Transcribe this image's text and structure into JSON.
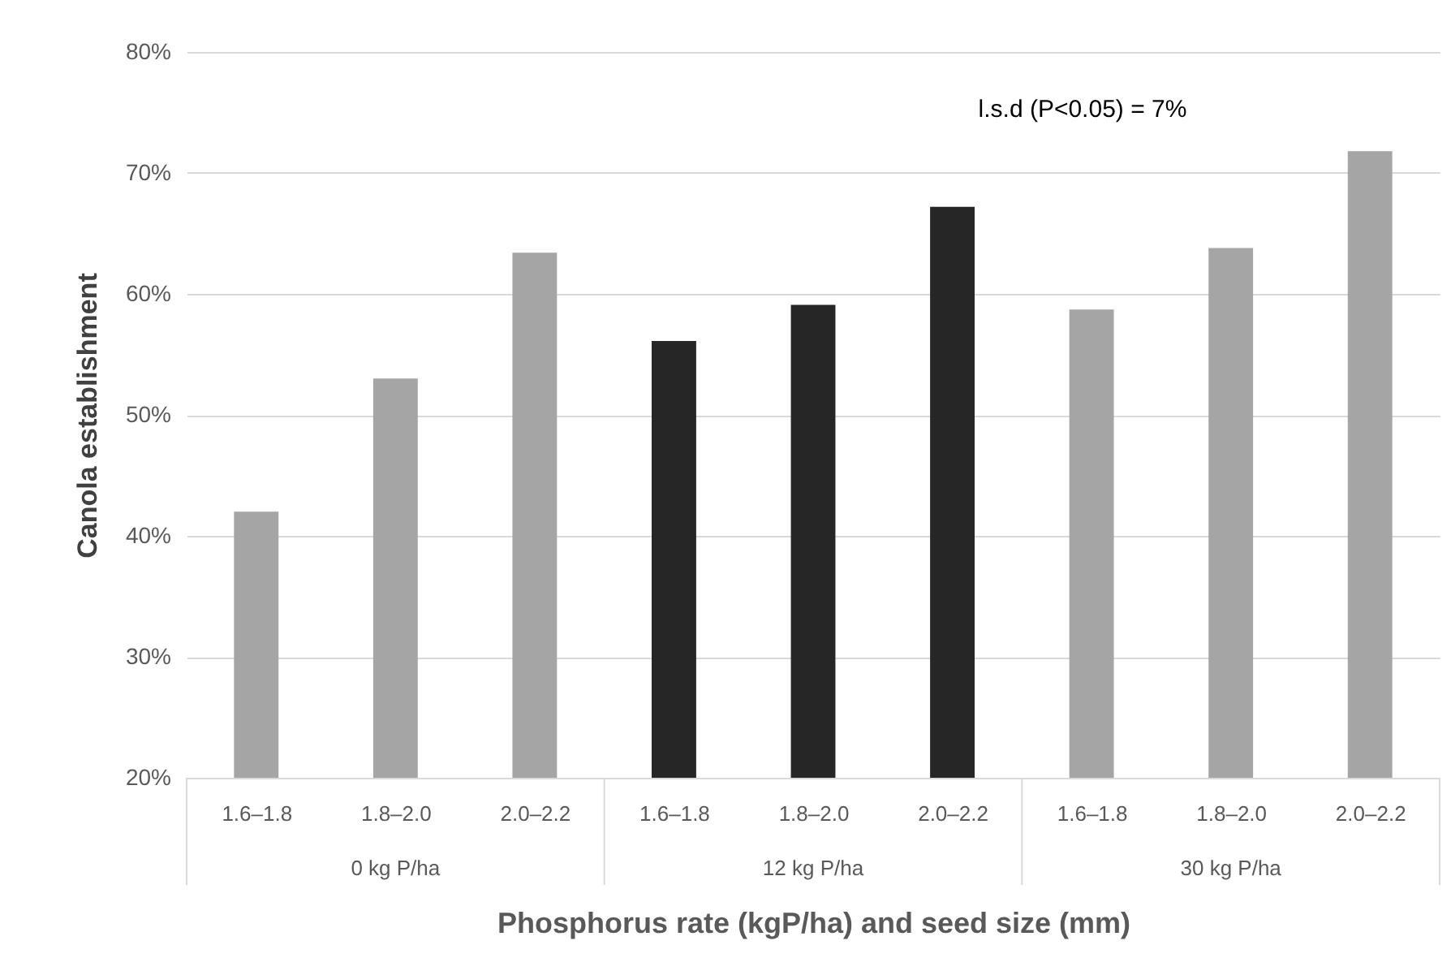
{
  "chart_data": {
    "type": "bar",
    "categories": [
      "1.6–1.8",
      "1.8–2.0",
      "2.0–2.2",
      "1.6–1.8",
      "1.8–2.0",
      "2.0–2.2",
      "1.6–1.8",
      "1.8–2.0",
      "2.0–2.2"
    ],
    "values": [
      42.0,
      53.0,
      63.4,
      56.1,
      59.1,
      67.2,
      58.7,
      63.8,
      71.8
    ],
    "colors": [
      "#a5a5a5",
      "#a5a5a5",
      "#a5a5a5",
      "#262626",
      "#262626",
      "#262626",
      "#a5a5a5",
      "#a5a5a5",
      "#a5a5a5"
    ],
    "xlabel": "Phosphorus rate (kgP/ha) and seed size (mm)",
    "ylabel": "Canola establishment",
    "ylim": [
      20,
      80
    ],
    "yticks": [
      {
        "value": 20,
        "label": "20%"
      },
      {
        "value": 30,
        "label": "30%"
      },
      {
        "value": 40,
        "label": "40%"
      },
      {
        "value": 50,
        "label": "50%"
      },
      {
        "value": 60,
        "label": "60%"
      },
      {
        "value": 70,
        "label": "70%"
      },
      {
        "value": 80,
        "label": "80%"
      }
    ],
    "annotations": [
      "l.s.d (P<0.05) = 7%",
      "0 kg P/ha",
      "12 kg P/ha",
      "30 kg P/ha"
    ],
    "grid": "y"
  }
}
